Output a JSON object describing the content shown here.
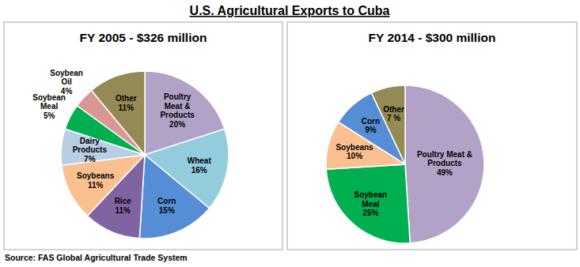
{
  "title": "U.S. Agricultural Exports to Cuba",
  "source": "Source: FAS Global Agricultural Trade System",
  "chart_data": [
    {
      "type": "pie",
      "title": "FY 2005 - $326 million",
      "categories": [
        "Poultry Meat & Products",
        "Wheat",
        "Corn",
        "Rice",
        "Soybeans",
        "Dairy Products",
        "Soybean Meal",
        "Soybean Oil",
        "Other"
      ],
      "values": [
        20,
        16,
        15,
        11,
        11,
        7,
        5,
        4,
        11
      ],
      "value_labels": [
        "20%",
        "16%",
        "15%",
        "11%",
        "11%",
        "7%",
        "5%",
        "4%",
        "11%"
      ],
      "colors": [
        "#b3a2c7",
        "#93cddd",
        "#558ed5",
        "#8064a2",
        "#fac090",
        "#b9cde5",
        "#00b050",
        "#d99694",
        "#948a54"
      ],
      "data_labels": true
    },
    {
      "type": "pie",
      "title": "FY 2014 - $300 million",
      "categories": [
        "Poultry Meat & Products",
        "Soybean Meal",
        "Soybeans",
        "Corn",
        "Other"
      ],
      "values": [
        49,
        25,
        10,
        9,
        7
      ],
      "value_labels": [
        "49%",
        "25%",
        "10%",
        "9%",
        "7 %"
      ],
      "colors": [
        "#b3a2c7",
        "#00b050",
        "#fac090",
        "#558ed5",
        "#948a54"
      ],
      "data_labels": true
    }
  ]
}
